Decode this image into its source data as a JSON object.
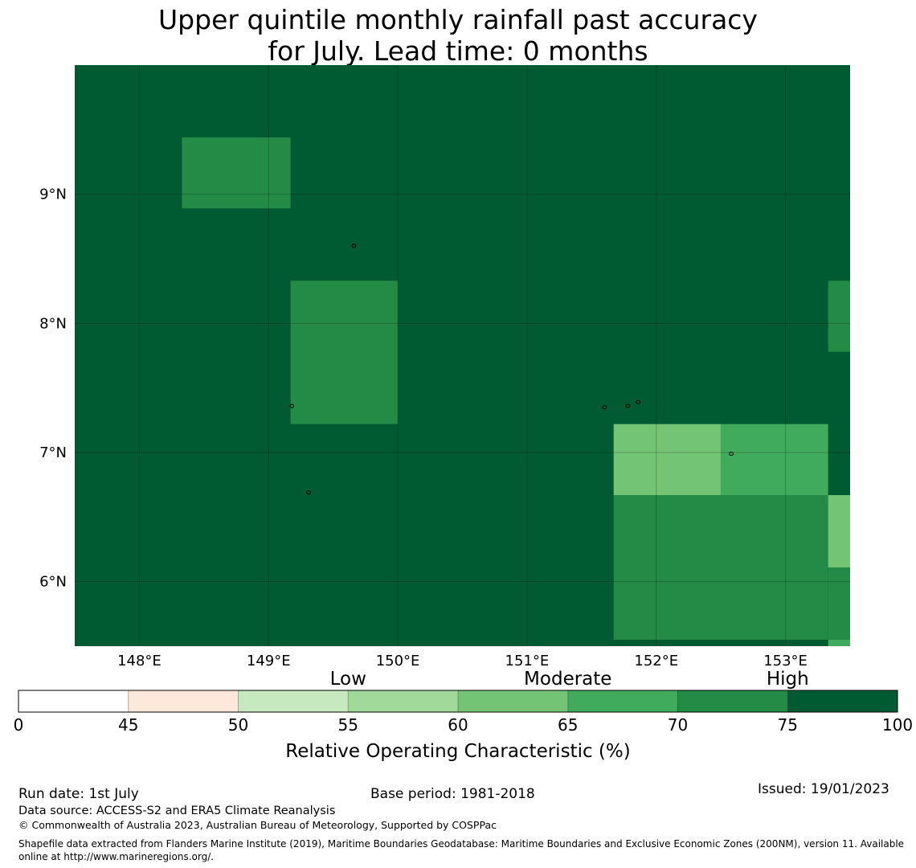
{
  "title": {
    "line1": "Upper quintile monthly rainfall past accuracy",
    "line2": "for July. Lead time: 0 months"
  },
  "map": {
    "lon_range": [
      147.5,
      153.5
    ],
    "lat_range": [
      5.5,
      10.0
    ],
    "x_ticks": [
      {
        "value": 148,
        "label": "148°E"
      },
      {
        "value": 149,
        "label": "149°E"
      },
      {
        "value": 150,
        "label": "150°E"
      },
      {
        "value": 151,
        "label": "151°E"
      },
      {
        "value": 152,
        "label": "152°E"
      },
      {
        "value": 153,
        "label": "153°E"
      }
    ],
    "y_ticks": [
      {
        "value": 9,
        "label": "9°N"
      },
      {
        "value": 8,
        "label": "8°N"
      },
      {
        "value": 7,
        "label": "7°N"
      },
      {
        "value": 6,
        "label": "6°N"
      }
    ],
    "background_color": "#005a32",
    "grid": true,
    "cells": [
      {
        "lon": [
          148.33,
          149.17
        ],
        "lat": [
          8.89,
          9.44
        ],
        "color": "#238b45"
      },
      {
        "lon": [
          149.17,
          150.0
        ],
        "lat": [
          7.22,
          8.33
        ],
        "color": "#238b45"
      },
      {
        "lon": [
          153.33,
          153.5
        ],
        "lat": [
          7.78,
          8.33
        ],
        "color": "#238b45"
      },
      {
        "lon": [
          151.67,
          152.5
        ],
        "lat": [
          6.67,
          7.22
        ],
        "color": "#74c476"
      },
      {
        "lon": [
          152.5,
          153.33
        ],
        "lat": [
          6.67,
          7.22
        ],
        "color": "#41ab5d"
      },
      {
        "lon": [
          151.67,
          153.33
        ],
        "lat": [
          5.55,
          6.67
        ],
        "color": "#238b45"
      },
      {
        "lon": [
          153.33,
          153.5
        ],
        "lat": [
          6.11,
          6.67
        ],
        "color": "#74c476"
      },
      {
        "lon": [
          153.33,
          153.5
        ],
        "lat": [
          5.55,
          6.11
        ],
        "color": "#238b45"
      },
      {
        "lon": [
          153.33,
          153.5
        ],
        "lat": [
          5.5,
          5.55
        ],
        "color": "#41ab5d"
      }
    ],
    "islands": [
      {
        "lon": 149.66,
        "lat": 8.6
      },
      {
        "lon": 149.18,
        "lat": 7.36
      },
      {
        "lon": 149.31,
        "lat": 6.69
      },
      {
        "lon": 151.6,
        "lat": 7.35
      },
      {
        "lon": 151.78,
        "lat": 7.36
      },
      {
        "lon": 151.86,
        "lat": 7.39
      },
      {
        "lon": 152.58,
        "lat": 6.99
      }
    ]
  },
  "colorbar": {
    "bounds": [
      0,
      45,
      50,
      55,
      60,
      65,
      70,
      75,
      100
    ],
    "tick_labels": [
      "0",
      "45",
      "50",
      "55",
      "60",
      "65",
      "70",
      "75",
      "100"
    ],
    "colors": [
      "#ffffff",
      "#fee8dc",
      "#c7e9c0",
      "#a1d99b",
      "#74c476",
      "#41ab5d",
      "#238b45",
      "#005a32"
    ],
    "categories": [
      {
        "label": "Low",
        "at_index": 3
      },
      {
        "label": "Moderate",
        "at_index": 5
      },
      {
        "label": "High",
        "at_index": 7
      }
    ],
    "label": "Relative Operating Characteristic (%)"
  },
  "footer": {
    "run_date": "Run date: 1st July",
    "base_period": "Base period: 1981-2018",
    "issued": "Issued: 19/01/2023",
    "data_source": "Data source: ACCESS-S2 and ERA5 Climate Reanalysis",
    "copyright": "© Commonwealth of Australia 2023, Australian Bureau of Meteorology, Supported by COSPPac",
    "shapefile": "Shapefile data extracted from Flanders Marine Institute (2019), Maritime Boundaries Geodatabase: Maritime Boundaries and Exclusive Economic Zones (200NM), version 11. Available online at http://www.marineregions.org/."
  }
}
